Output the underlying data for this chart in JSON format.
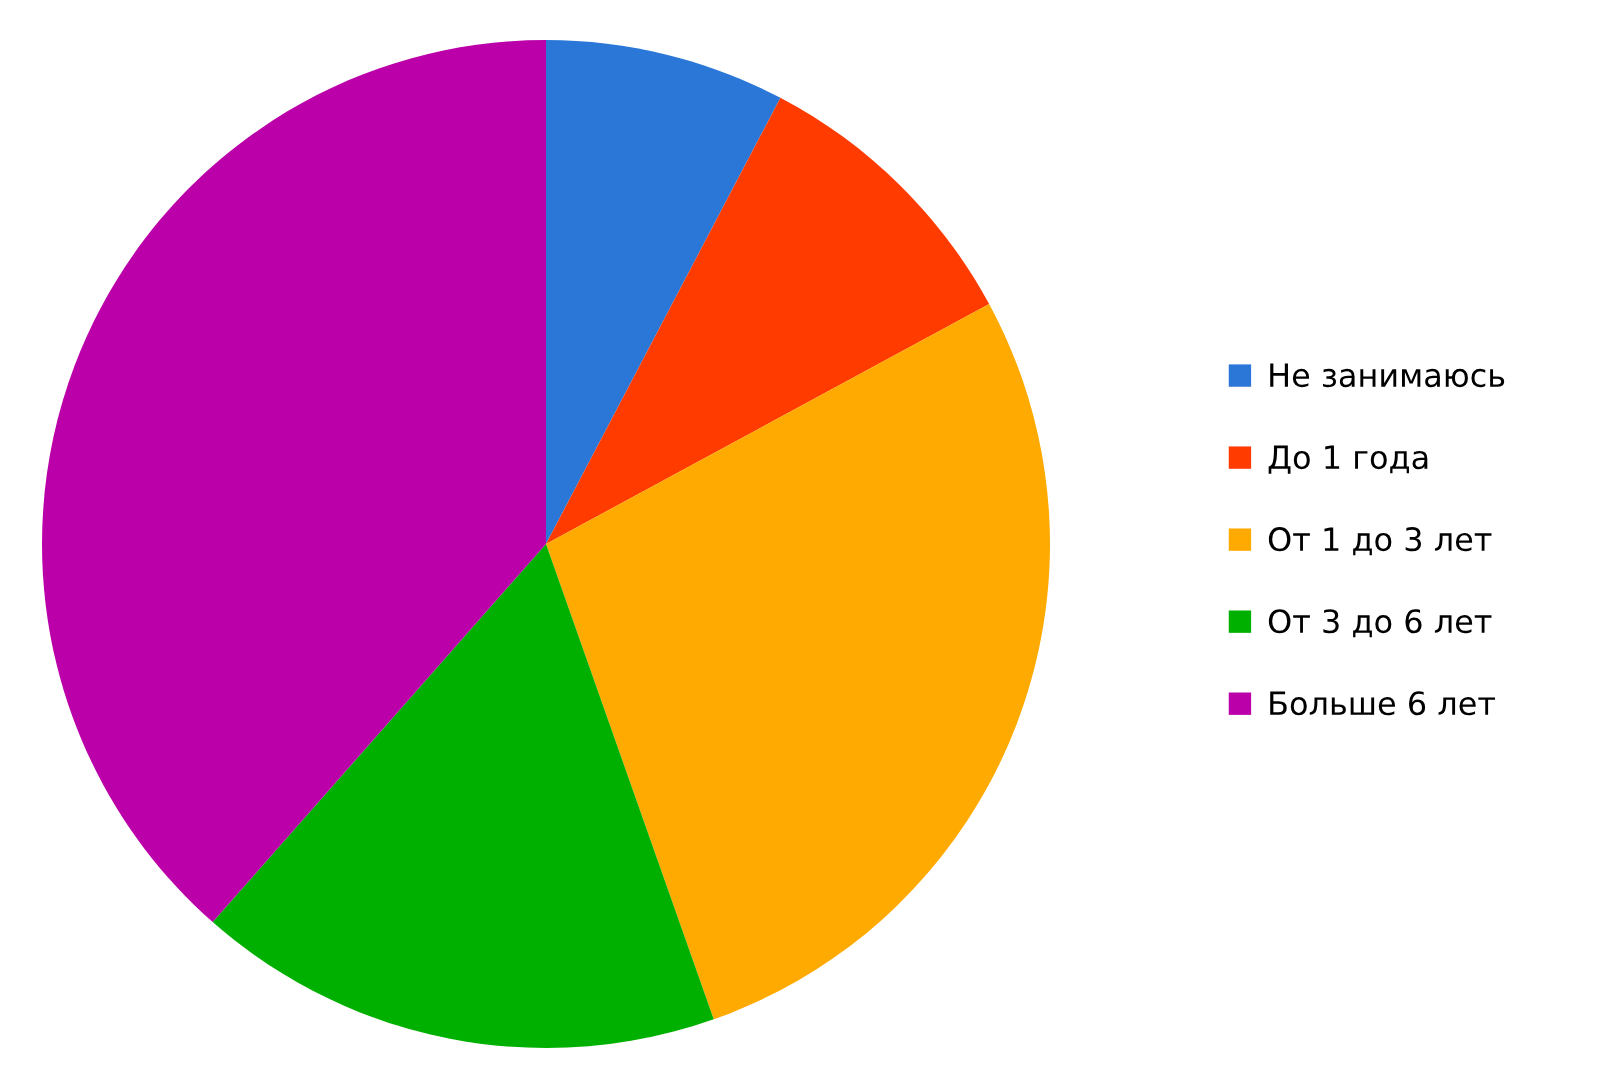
{
  "chart_data": {
    "type": "pie",
    "categories": [
      "Не занимаюсь",
      "До 1 года",
      "От 1 до 3 лет",
      "От 3 до 6 лет",
      "Больше 6 лет"
    ],
    "values": [
      7.7,
      9.4,
      27.5,
      16.9,
      38.5
    ],
    "colors": [
      "#2a77d8",
      "#ff3b00",
      "#ffaa00",
      "#00b000",
      "#bb00aa"
    ],
    "legend": "right"
  }
}
